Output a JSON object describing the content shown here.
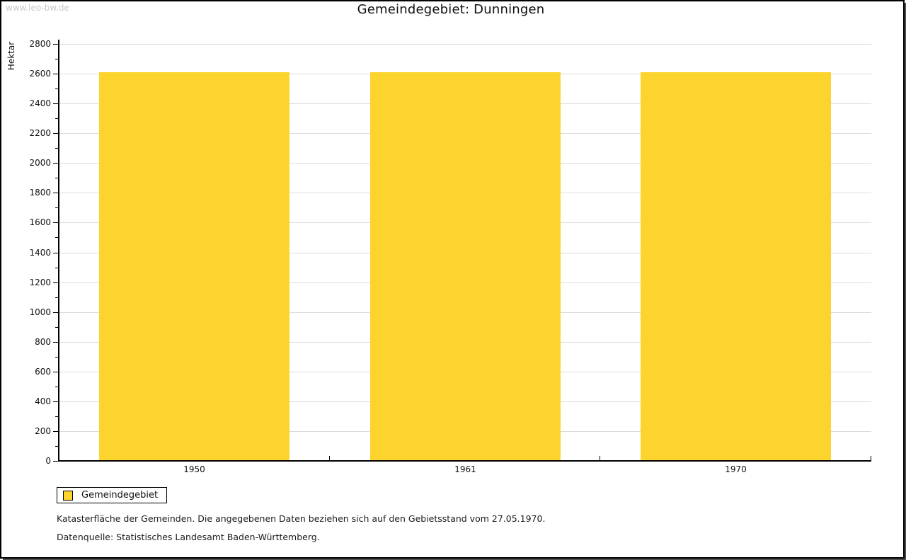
{
  "watermark": "www.leo-bw.de",
  "header": {
    "title": "Gemeindegebiet: Dunningen"
  },
  "chart_data": {
    "type": "bar",
    "title": "Gemeindegebiet: Dunningen",
    "categories": [
      "1950",
      "1961",
      "1970"
    ],
    "series": [
      {
        "name": "Gemeindegebiet",
        "values": [
          2610,
          2610,
          2610
        ]
      }
    ],
    "xlabel": "",
    "ylabel": "Hektar",
    "ylim": [
      0,
      2800
    ],
    "ytick_major": 200,
    "ytick_minor": 100,
    "grid": true,
    "legend_position": "bottom-left",
    "bar_color": "#fcd42d"
  },
  "legend": {
    "label": "Gemeindegebiet",
    "swatch_color": "#fcd42d"
  },
  "footnotes": {
    "line1": "Katasterfläche der Gemeinden. Die angegebenen Daten beziehen sich auf den Gebietsstand vom 27.05.1970.",
    "line2": "Datenquelle: Statistisches Landesamt Baden-Württemberg."
  },
  "colors": {
    "bar": "#fcd42d",
    "gridline": "#dcdcdc",
    "axis": "#000000",
    "watermark": "#c9c9c9",
    "frame_shadow": "#4f4f4f"
  }
}
